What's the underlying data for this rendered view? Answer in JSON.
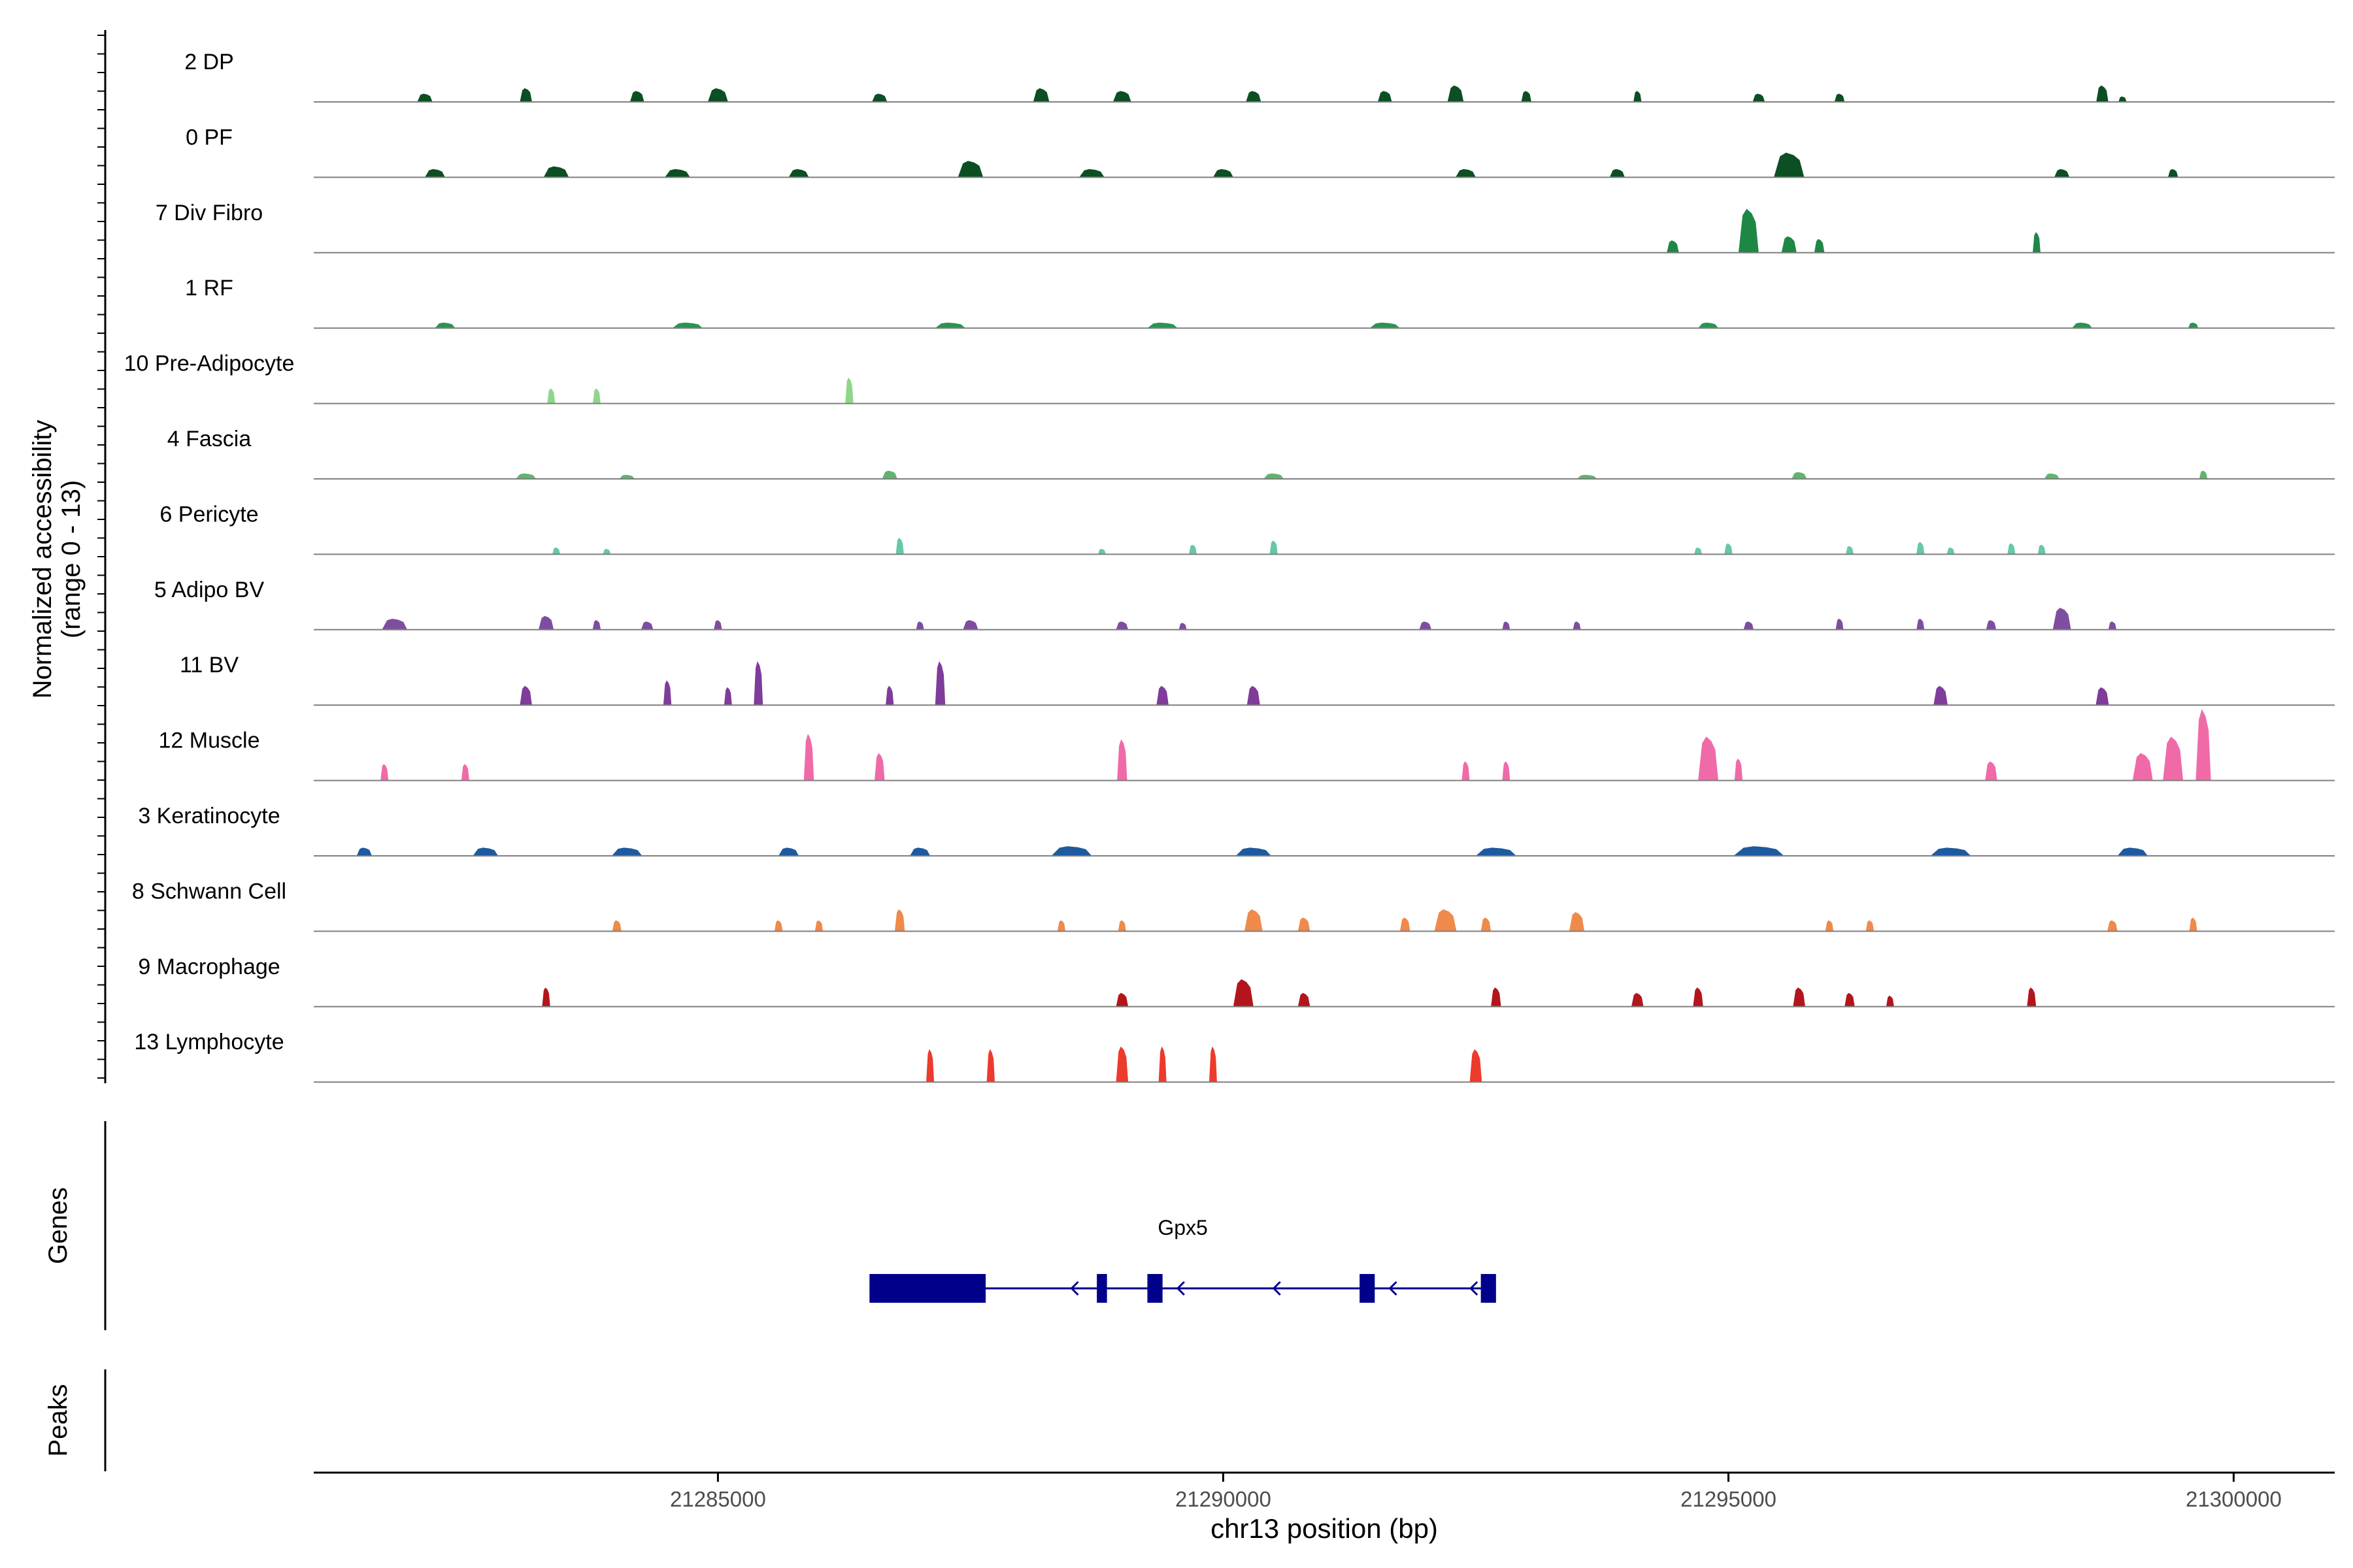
{
  "chart_data": {
    "type": "area",
    "title": "",
    "ylabel_line1": "Normalized accessibility",
    "ylabel_line2": "(range 0 - 13)",
    "yrange": [
      0,
      13
    ],
    "xlabel": "chr13 position (bp)",
    "xlim": [
      21281000,
      21301000
    ],
    "xticks": [
      21285000,
      21290000,
      21295000,
      21300000
    ],
    "xtick_labels": [
      "21285000",
      "21290000",
      "21295000",
      "21300000"
    ],
    "tracks": [
      {
        "name": "2 DP",
        "color": "#0b4f23",
        "peaks": [
          [
            21282100,
            0.3,
            150
          ],
          [
            21283100,
            0.5,
            120
          ],
          [
            21284200,
            0.4,
            140
          ],
          [
            21285000,
            0.5,
            200
          ],
          [
            21286600,
            0.3,
            150
          ],
          [
            21288200,
            0.5,
            160
          ],
          [
            21289000,
            0.4,
            180
          ],
          [
            21290300,
            0.4,
            150
          ],
          [
            21291600,
            0.4,
            140
          ],
          [
            21292300,
            0.6,
            160
          ],
          [
            21293000,
            0.4,
            100
          ],
          [
            21294100,
            0.4,
            80
          ],
          [
            21295300,
            0.3,
            120
          ],
          [
            21296100,
            0.3,
            100
          ],
          [
            21298700,
            0.6,
            120
          ],
          [
            21298900,
            0.2,
            80
          ]
        ]
      },
      {
        "name": "0 PF",
        "color": "#0b4f23",
        "peaks": [
          [
            21282200,
            0.3,
            200
          ],
          [
            21283400,
            0.4,
            250
          ],
          [
            21284600,
            0.3,
            250
          ],
          [
            21285800,
            0.3,
            200
          ],
          [
            21287500,
            0.6,
            250
          ],
          [
            21288700,
            0.3,
            250
          ],
          [
            21290000,
            0.3,
            200
          ],
          [
            21292400,
            0.3,
            200
          ],
          [
            21293900,
            0.3,
            150
          ],
          [
            21295600,
            0.9,
            300
          ],
          [
            21298300,
            0.3,
            150
          ],
          [
            21299400,
            0.3,
            100
          ]
        ]
      },
      {
        "name": "7 Div Fibro",
        "color": "#1e8745",
        "peaks": [
          [
            21294450,
            0.45,
            120
          ],
          [
            21295200,
            1.6,
            200
          ],
          [
            21295600,
            0.6,
            150
          ],
          [
            21295900,
            0.5,
            100
          ],
          [
            21298050,
            0.75,
            70
          ]
        ]
      },
      {
        "name": "1 RF",
        "color": "#2a9452",
        "peaks": [
          [
            21282300,
            0.2,
            200
          ],
          [
            21284700,
            0.2,
            300
          ],
          [
            21287300,
            0.2,
            300
          ],
          [
            21289400,
            0.2,
            300
          ],
          [
            21291600,
            0.2,
            300
          ],
          [
            21294800,
            0.2,
            200
          ],
          [
            21298500,
            0.2,
            200
          ],
          [
            21299600,
            0.2,
            100
          ]
        ]
      },
      {
        "name": "10 Pre-Adipocyte",
        "color": "#8fd68a",
        "peaks": [
          [
            21283350,
            0.55,
            60
          ],
          [
            21283800,
            0.55,
            60
          ],
          [
            21286300,
            0.95,
            80
          ]
        ]
      },
      {
        "name": "4 Fascia",
        "color": "#5fb56d",
        "peaks": [
          [
            21283100,
            0.2,
            200
          ],
          [
            21284100,
            0.15,
            150
          ],
          [
            21286700,
            0.3,
            150
          ],
          [
            21290500,
            0.2,
            200
          ],
          [
            21293600,
            0.15,
            200
          ],
          [
            21295700,
            0.25,
            150
          ],
          [
            21298200,
            0.2,
            150
          ],
          [
            21299700,
            0.3,
            80
          ]
        ]
      },
      {
        "name": "6 Pericyte",
        "color": "#66c8a4",
        "peaks": [
          [
            21283400,
            0.25,
            60
          ],
          [
            21283900,
            0.2,
            60
          ],
          [
            21286800,
            0.6,
            80
          ],
          [
            21288800,
            0.2,
            60
          ],
          [
            21289700,
            0.35,
            70
          ],
          [
            21290500,
            0.5,
            80
          ],
          [
            21294700,
            0.25,
            60
          ],
          [
            21295000,
            0.4,
            80
          ],
          [
            21296200,
            0.3,
            60
          ],
          [
            21296900,
            0.45,
            80
          ],
          [
            21297200,
            0.25,
            70
          ],
          [
            21297800,
            0.4,
            70
          ],
          [
            21298100,
            0.35,
            70
          ]
        ]
      },
      {
        "name": "5 Adipo BV",
        "color": "#7d4e9f",
        "peaks": [
          [
            21281800,
            0.4,
            250
          ],
          [
            21283300,
            0.5,
            150
          ],
          [
            21283800,
            0.35,
            80
          ],
          [
            21284300,
            0.3,
            120
          ],
          [
            21285000,
            0.35,
            80
          ],
          [
            21287000,
            0.3,
            60
          ],
          [
            21287500,
            0.35,
            150
          ],
          [
            21289000,
            0.3,
            120
          ],
          [
            21289600,
            0.25,
            60
          ],
          [
            21292000,
            0.3,
            120
          ],
          [
            21292800,
            0.3,
            60
          ],
          [
            21293500,
            0.3,
            60
          ],
          [
            21295200,
            0.3,
            100
          ],
          [
            21296100,
            0.4,
            70
          ],
          [
            21296900,
            0.4,
            70
          ],
          [
            21297600,
            0.35,
            100
          ],
          [
            21298300,
            0.8,
            180
          ],
          [
            21298800,
            0.3,
            80
          ]
        ]
      },
      {
        "name": "11 BV",
        "color": "#7f3c9b",
        "peaks": [
          [
            21283100,
            0.7,
            120
          ],
          [
            21284500,
            0.9,
            80
          ],
          [
            21285100,
            0.65,
            60
          ],
          [
            21285400,
            1.6,
            90
          ],
          [
            21286700,
            0.7,
            80
          ],
          [
            21287200,
            1.6,
            100
          ],
          [
            21289400,
            0.7,
            120
          ],
          [
            21290300,
            0.7,
            130
          ],
          [
            21297100,
            0.7,
            140
          ],
          [
            21298700,
            0.65,
            130
          ]
        ]
      },
      {
        "name": "12 Muscle",
        "color": "#f06aa8",
        "peaks": [
          [
            21281700,
            0.6,
            60
          ],
          [
            21282500,
            0.6,
            60
          ],
          [
            21285900,
            1.7,
            100
          ],
          [
            21286600,
            1.0,
            100
          ],
          [
            21289000,
            1.5,
            100
          ],
          [
            21292400,
            0.7,
            70
          ],
          [
            21292800,
            0.7,
            70
          ],
          [
            21294800,
            1.6,
            200
          ],
          [
            21295100,
            0.8,
            80
          ],
          [
            21297600,
            0.7,
            120
          ],
          [
            21299100,
            1.0,
            200
          ],
          [
            21299400,
            1.6,
            200
          ],
          [
            21299700,
            2.6,
            150
          ]
        ]
      },
      {
        "name": "3 Keratinocyte",
        "color": "#1e5aa0",
        "peaks": [
          [
            21281500,
            0.3,
            150
          ],
          [
            21282700,
            0.3,
            250
          ],
          [
            21284100,
            0.3,
            300
          ],
          [
            21285700,
            0.3,
            200
          ],
          [
            21287000,
            0.3,
            200
          ],
          [
            21288500,
            0.35,
            400
          ],
          [
            21290300,
            0.3,
            350
          ],
          [
            21292700,
            0.3,
            400
          ],
          [
            21295300,
            0.35,
            500
          ],
          [
            21297200,
            0.3,
            400
          ],
          [
            21299000,
            0.3,
            300
          ]
        ]
      },
      {
        "name": "8 Schwann Cell",
        "color": "#ef8a4a",
        "peaks": [
          [
            21284000,
            0.4,
            90
          ],
          [
            21285600,
            0.4,
            80
          ],
          [
            21286000,
            0.4,
            80
          ],
          [
            21286800,
            0.8,
            100
          ],
          [
            21288400,
            0.4,
            70
          ],
          [
            21289000,
            0.4,
            70
          ],
          [
            21290300,
            0.8,
            180
          ],
          [
            21290800,
            0.5,
            120
          ],
          [
            21291800,
            0.5,
            100
          ],
          [
            21292200,
            0.8,
            220
          ],
          [
            21292600,
            0.5,
            100
          ],
          [
            21293500,
            0.7,
            150
          ],
          [
            21296000,
            0.4,
            80
          ],
          [
            21296400,
            0.4,
            80
          ],
          [
            21298800,
            0.4,
            100
          ],
          [
            21299600,
            0.5,
            60
          ]
        ]
      },
      {
        "name": "9 Macrophage",
        "color": "#b2161c",
        "peaks": [
          [
            21283300,
            0.7,
            80
          ],
          [
            21289000,
            0.5,
            120
          ],
          [
            21290200,
            1.0,
            200
          ],
          [
            21290800,
            0.5,
            120
          ],
          [
            21292700,
            0.7,
            100
          ],
          [
            21294100,
            0.5,
            120
          ],
          [
            21294700,
            0.7,
            100
          ],
          [
            21295700,
            0.7,
            120
          ],
          [
            21296200,
            0.5,
            100
          ],
          [
            21296600,
            0.4,
            60
          ],
          [
            21298000,
            0.7,
            90
          ]
        ]
      },
      {
        "name": "13 Lymphocyte",
        "color": "#ec3b2c",
        "peaks": [
          [
            21287100,
            1.2,
            60
          ],
          [
            21287700,
            1.2,
            80
          ],
          [
            21289000,
            1.3,
            120
          ],
          [
            21289400,
            1.3,
            60
          ],
          [
            21289900,
            1.3,
            60
          ],
          [
            21292500,
            1.2,
            120
          ]
        ]
      }
    ],
    "genes_label": "Genes",
    "peaks_label": "Peaks",
    "gene": {
      "name": "Gpx5",
      "color": "#00008b",
      "start": 21286500,
      "end": 21292700,
      "exons": [
        [
          21286500,
          21287650,
          "utr"
        ],
        [
          21288750,
          21288850,
          "cds"
        ],
        [
          21289250,
          21289400,
          "cds"
        ],
        [
          21291350,
          21291500,
          "cds"
        ],
        [
          21292550,
          21292700,
          "cds"
        ]
      ],
      "arrows": [
        21288500,
        21289550,
        21290500,
        21291650,
        21292450
      ]
    }
  }
}
